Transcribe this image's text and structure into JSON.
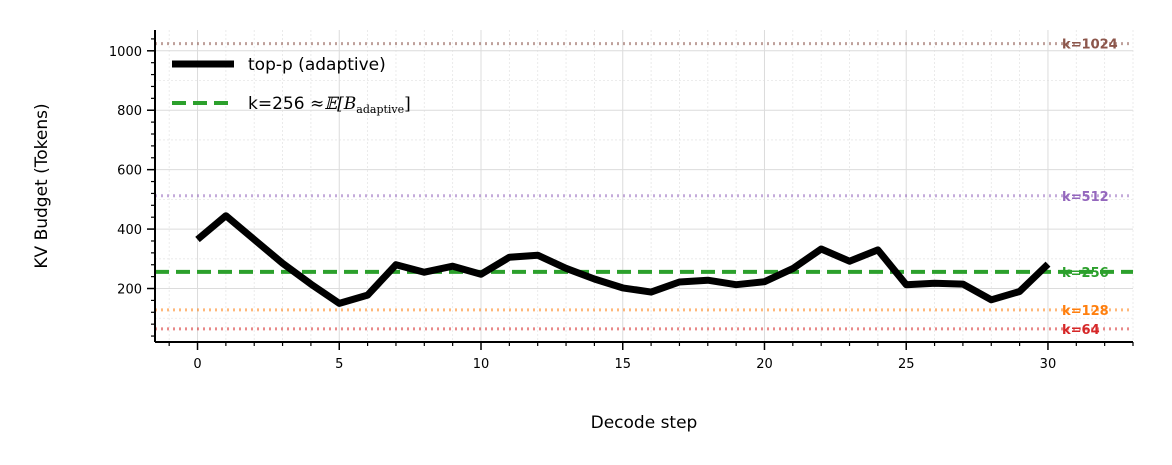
{
  "chart_data": {
    "type": "line",
    "xlabel": "Decode step",
    "ylabel": "KV Budget (Tokens)",
    "xlim": [
      -1.5,
      33
    ],
    "ylim": [
      20,
      1070
    ],
    "x_ticks": [
      0,
      5,
      10,
      15,
      20,
      25,
      30
    ],
    "y_ticks": [
      200,
      400,
      600,
      800,
      1000
    ],
    "grid": true,
    "legend_position": "top-left",
    "series": [
      {
        "name": "top-p (adaptive)",
        "color": "#000000",
        "style": "solid",
        "x": [
          0,
          1,
          2,
          3,
          4,
          5,
          6,
          7,
          8,
          9,
          10,
          11,
          12,
          13,
          14,
          15,
          16,
          17,
          18,
          19,
          20,
          21,
          22,
          23,
          24,
          25,
          26,
          27,
          28,
          29,
          30
        ],
        "values": [
          365,
          445,
          365,
          285,
          215,
          150,
          178,
          280,
          255,
          275,
          248,
          305,
          312,
          268,
          232,
          202,
          188,
          222,
          228,
          213,
          223,
          267,
          333,
          292,
          330,
          213,
          218,
          215,
          162,
          190,
          282
        ]
      }
    ],
    "legend": [
      {
        "label": "top-p (adaptive)",
        "style": "solid",
        "color": "#000000"
      },
      {
        "label": "k=256",
        "math": "≈𝔼[B",
        "math_sub": "adaptive",
        "math_end": "]",
        "style": "dashed",
        "color": "#2ca02c"
      }
    ],
    "reference_lines": [
      {
        "value": 1024,
        "label": "k=1024",
        "color": "#8c564b",
        "style": "dotted"
      },
      {
        "value": 512,
        "label": "k=512",
        "color": "#9467bd",
        "style": "dotted"
      },
      {
        "value": 256,
        "label": "k=256",
        "color": "#2ca02c",
        "style": "dashed"
      },
      {
        "value": 128,
        "label": "k=128",
        "color": "#ff7f0e",
        "style": "dotted"
      },
      {
        "value": 64,
        "label": "k=64",
        "color": "#d62728",
        "style": "dotted"
      }
    ]
  }
}
